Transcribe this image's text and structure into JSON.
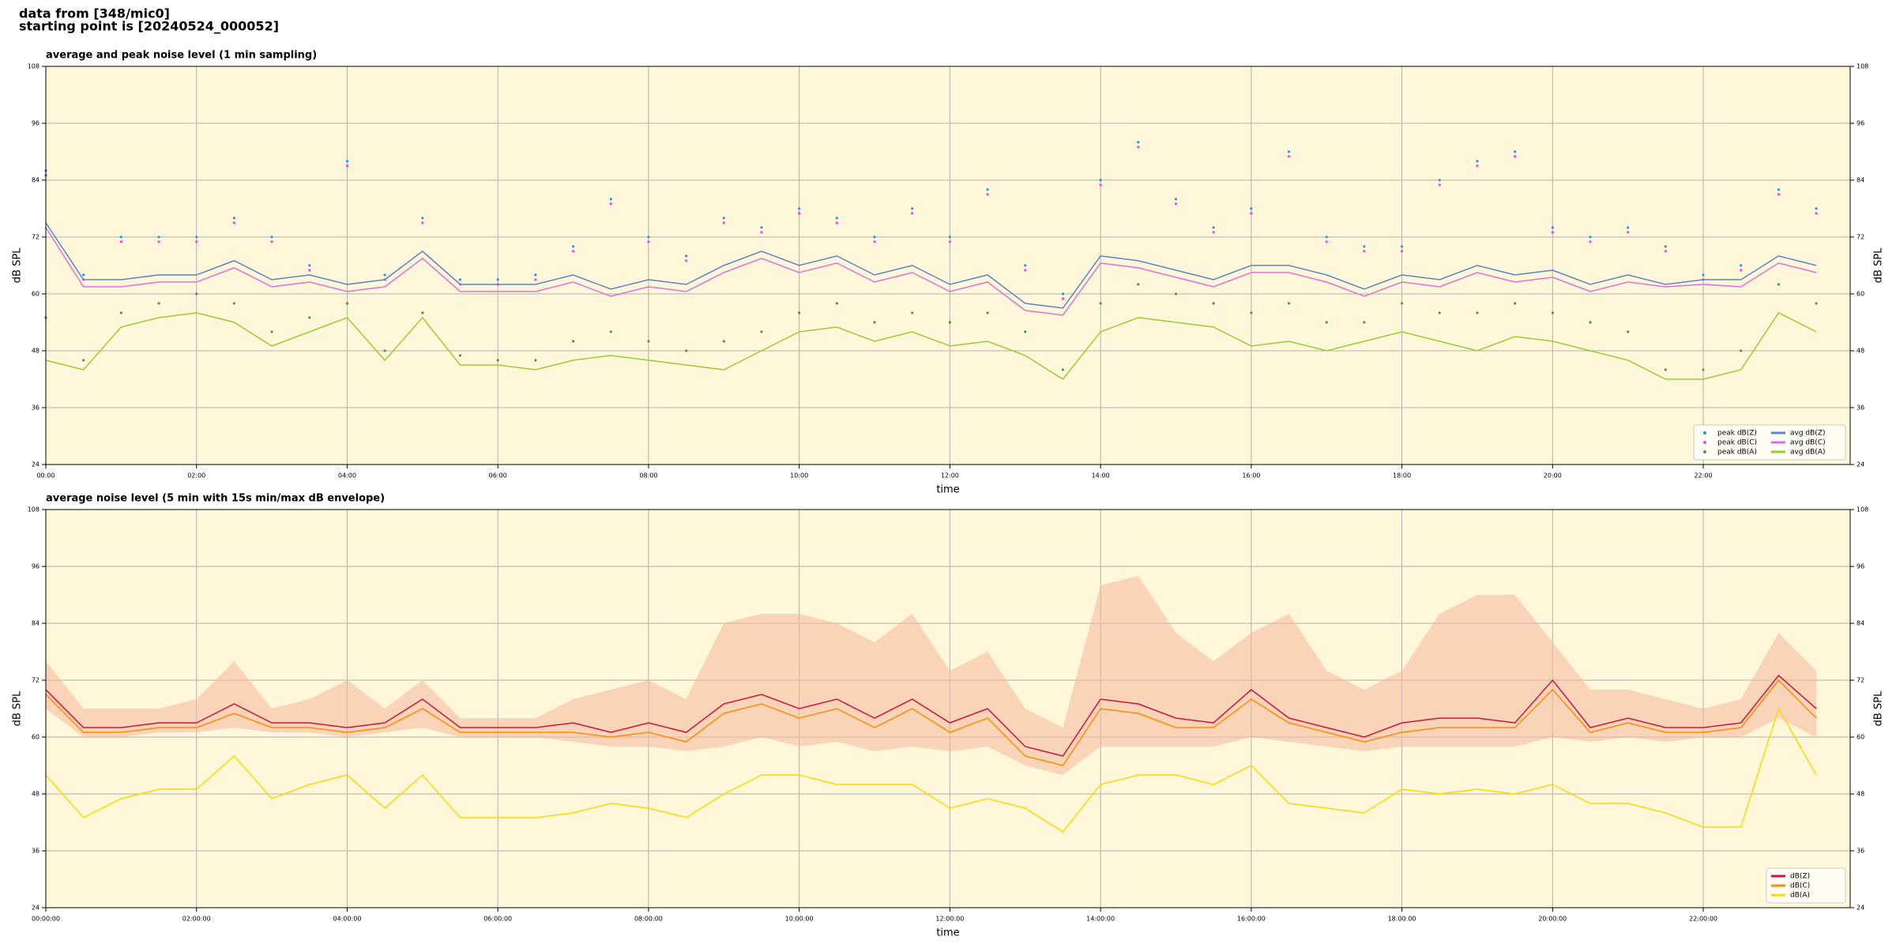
{
  "suptitle": [
    "data from [348/mic0]",
    "starting point is [20240524_000052]"
  ],
  "chart_data": [
    {
      "type": "line",
      "title": "average and peak noise level (1 min sampling)",
      "xlabel": "time",
      "ylabel": "dB SPL",
      "y2label": "dB SPL",
      "x": [
        0,
        30,
        60,
        90,
        120,
        150,
        180,
        210,
        240,
        270,
        300,
        330,
        360,
        390,
        420,
        450,
        480,
        510,
        540,
        570,
        600,
        630,
        660,
        690,
        720,
        750,
        780,
        810,
        840,
        870,
        900,
        930,
        960,
        990,
        1020,
        1050,
        1080,
        1110,
        1140,
        1170,
        1200,
        1230,
        1260,
        1290,
        1320,
        1350,
        1380,
        1410
      ],
      "xlim": [
        0,
        1437
      ],
      "ylim": [
        24,
        108
      ],
      "xticks": [
        {
          "value": 0,
          "label": "00:00"
        },
        {
          "value": 120,
          "label": "02:00"
        },
        {
          "value": 240,
          "label": "04:00"
        },
        {
          "value": 360,
          "label": "06:00"
        },
        {
          "value": 480,
          "label": "08:00"
        },
        {
          "value": 600,
          "label": "10:00"
        },
        {
          "value": 720,
          "label": "12:00"
        },
        {
          "value": 840,
          "label": "14:00"
        },
        {
          "value": 960,
          "label": "16:00"
        },
        {
          "value": 1080,
          "label": "18:00"
        },
        {
          "value": 1200,
          "label": "20:00"
        },
        {
          "value": 1320,
          "label": "22:00"
        }
      ],
      "yticks": [
        24,
        36,
        48,
        60,
        72,
        84,
        96,
        108
      ],
      "grid": true,
      "legend": "lower right",
      "legend_columns": 2,
      "series": [
        {
          "name": "peak dB(Z)",
          "style": "markers",
          "color": "#1f9fd8",
          "values": [
            86,
            64,
            72,
            72,
            72,
            76,
            72,
            66,
            88,
            64,
            76,
            63,
            63,
            64,
            70,
            80,
            72,
            68,
            76,
            74,
            78,
            76,
            72,
            78,
            72,
            82,
            66,
            60,
            84,
            92,
            80,
            74,
            78,
            90,
            72,
            70,
            70,
            84,
            88,
            90,
            74,
            72,
            74,
            70,
            64,
            66,
            82,
            78
          ]
        },
        {
          "name": "peak dB(C)",
          "style": "markers",
          "color": "#ff3cf0",
          "values": [
            85,
            63,
            71,
            71,
            71,
            75,
            71,
            65,
            87,
            63,
            75,
            62,
            62,
            63,
            69,
            79,
            71,
            67,
            75,
            73,
            77,
            75,
            71,
            77,
            71,
            81,
            65,
            59,
            83,
            91,
            79,
            73,
            77,
            89,
            71,
            69,
            69,
            83,
            87,
            89,
            73,
            71,
            73,
            69,
            63,
            65,
            81,
            77
          ]
        },
        {
          "name": "peak dB(A)",
          "style": "markers",
          "color": "#4a9a4a",
          "values": [
            55,
            46,
            56,
            58,
            60,
            58,
            52,
            55,
            58,
            48,
            56,
            47,
            46,
            46,
            50,
            52,
            50,
            48,
            50,
            52,
            56,
            58,
            54,
            56,
            54,
            56,
            52,
            44,
            58,
            62,
            60,
            58,
            56,
            58,
            54,
            54,
            58,
            56,
            56,
            58,
            56,
            54,
            52,
            44,
            44,
            48,
            62,
            58
          ]
        },
        {
          "name": "avg dB(Z)",
          "style": "line",
          "color": "#5a86c4",
          "values": [
            75,
            63,
            63,
            64,
            64,
            67,
            63,
            64,
            62,
            63,
            69,
            62,
            62,
            62,
            64,
            61,
            63,
            62,
            66,
            69,
            66,
            68,
            64,
            66,
            62,
            64,
            58,
            57,
            68,
            67,
            65,
            63,
            66,
            66,
            64,
            61,
            64,
            63,
            66,
            64,
            65,
            62,
            64,
            62,
            63,
            63,
            68,
            66
          ]
        },
        {
          "name": "avg dB(C)",
          "style": "line",
          "color": "#e070d8",
          "values": [
            74,
            61.5,
            61.5,
            62.5,
            62.5,
            65.5,
            61.5,
            62.5,
            60.5,
            61.5,
            67.5,
            60.5,
            60.5,
            60.5,
            62.5,
            59.5,
            61.5,
            60.5,
            64.5,
            67.5,
            64.5,
            66.5,
            62.5,
            64.5,
            60.5,
            62.5,
            56.5,
            55.5,
            66.5,
            65.5,
            63.5,
            61.5,
            64.5,
            64.5,
            62.5,
            59.5,
            62.5,
            61.5,
            64.5,
            62.5,
            63.5,
            60.5,
            62.5,
            61.5,
            62,
            61.5,
            66.5,
            64.5
          ]
        },
        {
          "name": "avg dB(A)",
          "style": "line",
          "color": "#9acd32",
          "values": [
            46,
            44,
            53,
            55,
            56,
            54,
            49,
            52,
            55,
            46,
            55,
            45,
            45,
            44,
            46,
            47,
            46,
            45,
            44,
            48,
            52,
            53,
            50,
            52,
            49,
            50,
            47,
            42,
            52,
            55,
            54,
            53,
            49,
            50,
            48,
            50,
            52,
            50,
            48,
            51,
            50,
            48,
            46,
            42,
            42,
            44,
            56,
            52
          ]
        }
      ]
    },
    {
      "type": "line",
      "title": "average noise level (5 min with 15s min/max dB envelope)",
      "xlabel": "time",
      "ylabel": "dB SPL",
      "y2label": "dB SPL",
      "x": [
        0,
        30,
        60,
        90,
        120,
        150,
        180,
        210,
        240,
        270,
        300,
        330,
        360,
        390,
        420,
        450,
        480,
        510,
        540,
        570,
        600,
        630,
        660,
        690,
        720,
        750,
        780,
        810,
        840,
        870,
        900,
        930,
        960,
        990,
        1020,
        1050,
        1080,
        1110,
        1140,
        1170,
        1200,
        1230,
        1260,
        1290,
        1320,
        1350,
        1380,
        1410
      ],
      "xlim": [
        0,
        1437
      ],
      "ylim": [
        24,
        108
      ],
      "xticks": [
        {
          "value": 0,
          "label": "00:00:00"
        },
        {
          "value": 120,
          "label": "02:00:00"
        },
        {
          "value": 240,
          "label": "04:00:00"
        },
        {
          "value": 360,
          "label": "06:00:00"
        },
        {
          "value": 480,
          "label": "08:00:00"
        },
        {
          "value": 600,
          "label": "10:00:00"
        },
        {
          "value": 720,
          "label": "12:00:00"
        },
        {
          "value": 840,
          "label": "14:00:00"
        },
        {
          "value": 960,
          "label": "16:00:00"
        },
        {
          "value": 1080,
          "label": "18:00:00"
        },
        {
          "value": 1200,
          "label": "20:00:00"
        },
        {
          "value": 1320,
          "label": "22:00:00"
        }
      ],
      "yticks": [
        24,
        36,
        48,
        60,
        72,
        84,
        96,
        108
      ],
      "grid": true,
      "legend": "lower right",
      "legend_columns": 1,
      "envelope": {
        "color": "#f5b89c",
        "upper": [
          76,
          66,
          66,
          66,
          68,
          76,
          66,
          68,
          72,
          66,
          72,
          64,
          64,
          64,
          68,
          70,
          72,
          68,
          84,
          86,
          86,
          84,
          80,
          86,
          74,
          78,
          66,
          62,
          92,
          94,
          82,
          76,
          82,
          86,
          74,
          70,
          74,
          86,
          90,
          90,
          80,
          70,
          70,
          68,
          66,
          68,
          82,
          74
        ],
        "lower": [
          66,
          60,
          60,
          61,
          61,
          62,
          61,
          61,
          60,
          61,
          62,
          60,
          60,
          60,
          59,
          58,
          58,
          57,
          58,
          60,
          58,
          59,
          57,
          58,
          57,
          58,
          54,
          52,
          58,
          58,
          58,
          58,
          60,
          59,
          58,
          57,
          58,
          58,
          58,
          58,
          60,
          59,
          60,
          59,
          60,
          60,
          64,
          60
        ]
      },
      "series": [
        {
          "name": "dB(Z)",
          "style": "line",
          "color": "#d0143c",
          "values": [
            70,
            62,
            62,
            63,
            63,
            67,
            63,
            63,
            62,
            63,
            68,
            62,
            62,
            62,
            63,
            61,
            63,
            61,
            67,
            69,
            66,
            68,
            64,
            68,
            63,
            66,
            58,
            56,
            68,
            67,
            64,
            63,
            70,
            64,
            62,
            60,
            63,
            64,
            64,
            63,
            72,
            62,
            64,
            62,
            62,
            63,
            73,
            66
          ]
        },
        {
          "name": "dB(C)",
          "style": "line",
          "color": "#ff8c00",
          "values": [
            69,
            61,
            61,
            62,
            62,
            65,
            62,
            62,
            61,
            62,
            66,
            61,
            61,
            61,
            61,
            60,
            61,
            59,
            65,
            67,
            64,
            66,
            62,
            66,
            61,
            64,
            56,
            54,
            66,
            65,
            62,
            62,
            68,
            63,
            61,
            59,
            61,
            62,
            62,
            62,
            70,
            61,
            63,
            61,
            61,
            62,
            72,
            64
          ]
        },
        {
          "name": "dB(A)",
          "style": "line",
          "color": "#ffd700",
          "values": [
            52,
            43,
            47,
            49,
            49,
            56,
            47,
            50,
            52,
            45,
            52,
            43,
            43,
            43,
            44,
            46,
            45,
            43,
            48,
            52,
            52,
            50,
            50,
            50,
            45,
            47,
            45,
            40,
            50,
            52,
            52,
            50,
            54,
            46,
            45,
            44,
            49,
            48,
            49,
            48,
            50,
            46,
            46,
            44,
            41,
            41,
            66,
            52
          ]
        }
      ]
    }
  ]
}
